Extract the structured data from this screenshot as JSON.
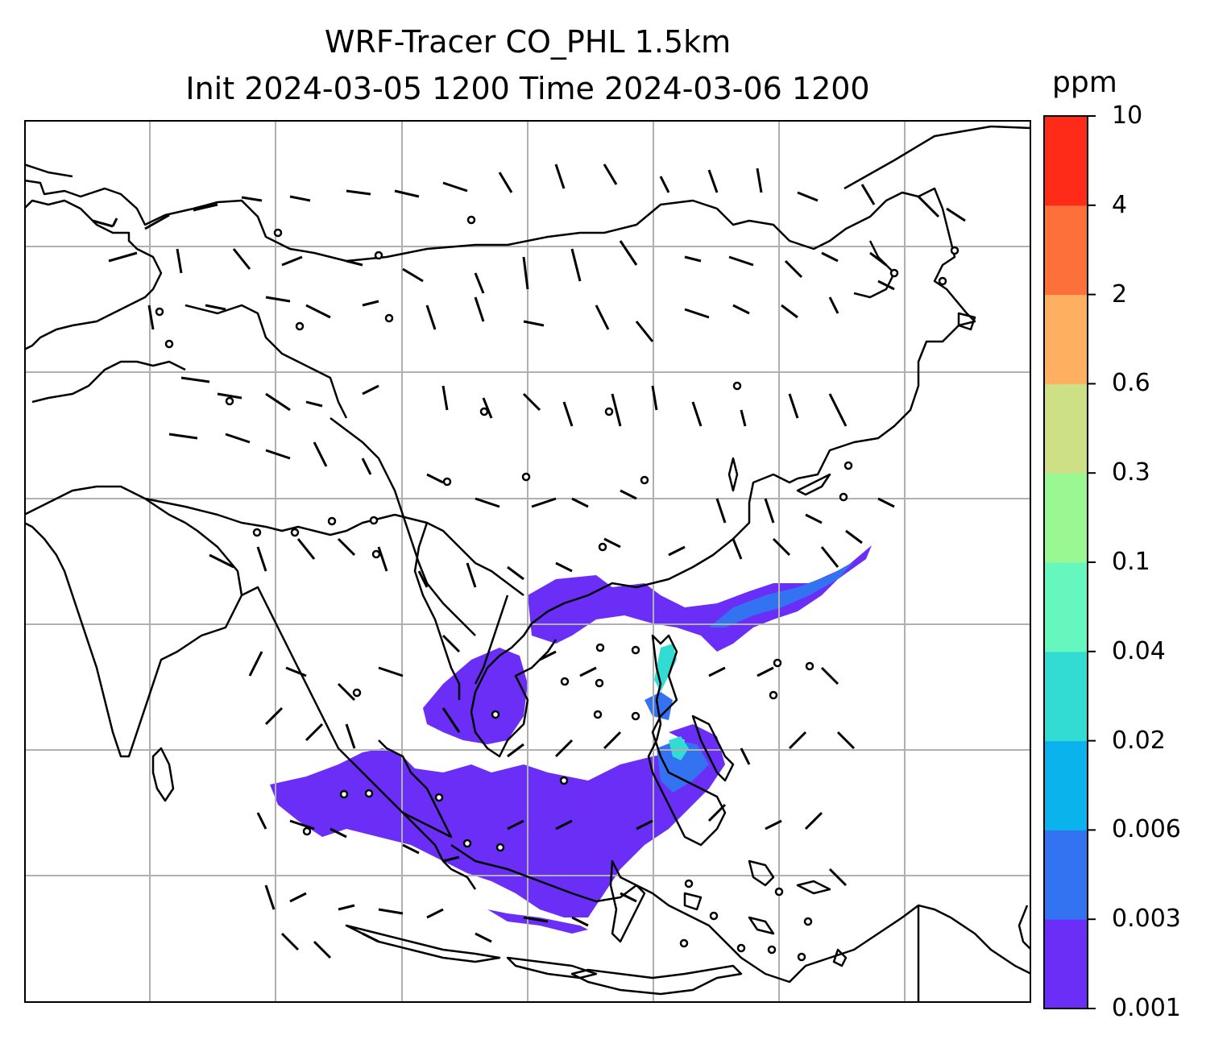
{
  "title": {
    "line1": "WRF-Tracer CO_PHL 1.5km",
    "line2": "Init 2024-03-05 1200 Time 2024-03-06 1200"
  },
  "colorbar": {
    "unit": "ppm",
    "levels": [
      "0.001",
      "0.003",
      "0.006",
      "0.02",
      "0.04",
      "0.1",
      "0.3",
      "0.6",
      "2",
      "4",
      "10"
    ],
    "colors": [
      "#6a2ef7",
      "#3373f2",
      "#0bb3ec",
      "#33dcd3",
      "#66f7be",
      "#99f892",
      "#cde085",
      "#feaf60",
      "#fe703a",
      "#fe2b18"
    ]
  },
  "map": {
    "region": "East, South and Southeast Asia",
    "gridlines": true,
    "coastline_color": "#000000",
    "tracer_colors": {
      "low": "#6a2ef7",
      "mid": "#3373f2",
      "high": "#33dcd3"
    }
  }
}
